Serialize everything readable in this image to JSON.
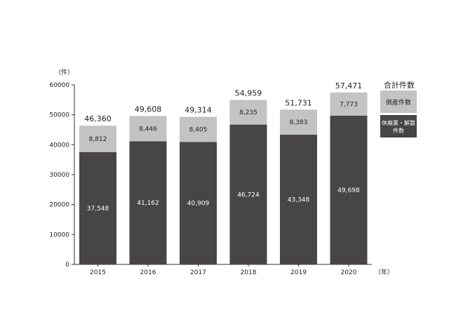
{
  "chart_data": {
    "type": "bar",
    "stacked": true,
    "categories": [
      "2015",
      "2016",
      "2017",
      "2018",
      "2019",
      "2020"
    ],
    "series": [
      {
        "name": "休廃業・解散件数",
        "values": [
          37548,
          41162,
          40909,
          46724,
          43348,
          49698
        ],
        "color": "#474546"
      },
      {
        "name": "倒産件数",
        "values": [
          8812,
          8446,
          8405,
          8235,
          8383,
          7773
        ],
        "color": "#c3c3c3"
      }
    ],
    "data_labels": [
      [
        "37,548",
        "41,162",
        "40,909",
        "46,724",
        "43,348",
        "49,698"
      ],
      [
        "8,812",
        "8,446",
        "8,405",
        "8,235",
        "8,383",
        "7,773"
      ]
    ],
    "totals": [
      46360,
      49608,
      49314,
      54959,
      51731,
      57471
    ],
    "total_labels": [
      "46,360",
      "49,608",
      "49,314",
      "54,959",
      "51,731",
      "57,471"
    ],
    "y_ticks": [
      0,
      10000,
      20000,
      30000,
      40000,
      50000,
      60000
    ],
    "ylim": [
      0,
      60000
    ],
    "ylabel": "（件）",
    "xlabel": "（年）",
    "legend": {
      "position": "right",
      "title": "合計件数",
      "light_label": "倒産件数",
      "dark_label_lines": [
        "休廃業・解散",
        "件数"
      ]
    },
    "grid": false
  }
}
